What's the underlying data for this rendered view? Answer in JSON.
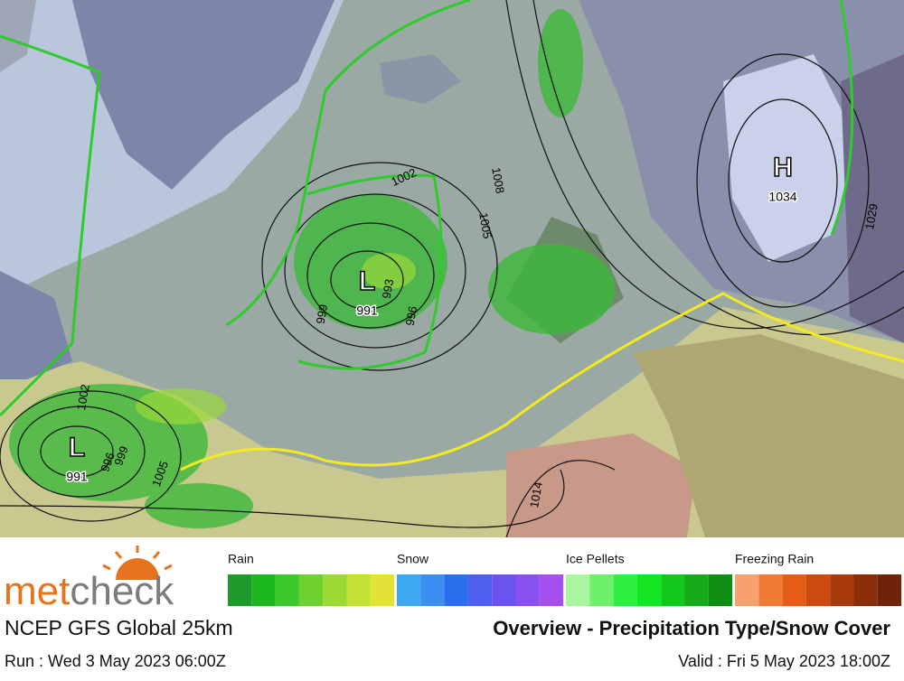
{
  "map": {
    "pressure_centers": [
      {
        "symbol": "L",
        "value": 991
      },
      {
        "symbol": "L",
        "value": 991
      },
      {
        "symbol": "H",
        "value": 1034
      }
    ],
    "isobar_labels": [
      1002,
      1008,
      1005,
      993,
      999,
      996,
      996,
      999,
      1005,
      1014,
      1029,
      1002
    ]
  },
  "footer": {
    "logo": {
      "part1": "met",
      "part2": "check"
    },
    "model": "NCEP GFS Global 25km",
    "run": "Run : Wed 3 May 2023 06:00Z",
    "title": "Overview - Precipitation Type/Snow Cover",
    "valid": "Valid : Fri 5 May 2023 18:00Z"
  },
  "legend": [
    {
      "label": "Rain",
      "colors": [
        "#1d9a2b",
        "#19b81f",
        "#3cc92b",
        "#6fd12f",
        "#9bd934",
        "#c5e035",
        "#e4e237"
      ]
    },
    {
      "label": "Snow",
      "colors": [
        "#3da8f0",
        "#3b8ff0",
        "#2c6ef0",
        "#4d5ef0",
        "#6a53ee",
        "#8a4ff0",
        "#a54ff0"
      ]
    },
    {
      "label": "Ice Pellets",
      "colors": [
        "#a9f5a0",
        "#6ef06a",
        "#2ef040",
        "#14e620",
        "#11c81b",
        "#14aa1a",
        "#0f8c14"
      ]
    },
    {
      "label": "Freezing Rain",
      "colors": [
        "#f7a070",
        "#f27a35",
        "#e55d14",
        "#cc4a10",
        "#a83a0c",
        "#8a2e0a",
        "#6e2408"
      ]
    }
  ]
}
